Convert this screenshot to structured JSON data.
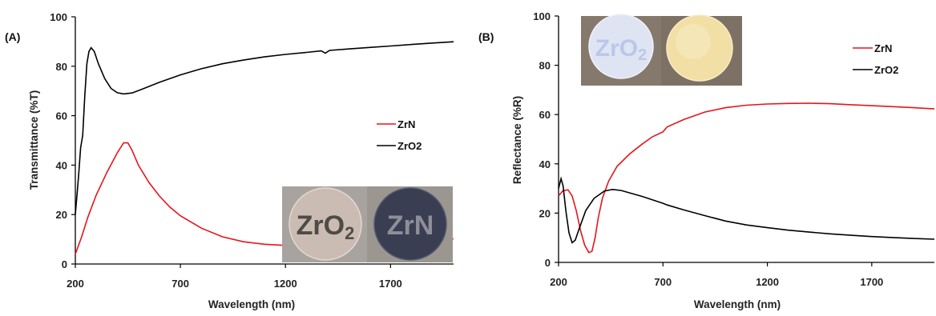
{
  "chart_data": [
    {
      "type": "line",
      "panel_label": "(A)",
      "xlabel": "Wavelength (nm)",
      "ylabel": "Transmittance (%T)",
      "xlim": [
        200,
        2000
      ],
      "ylim": [
        0,
        100
      ],
      "x_ticks": [
        200,
        700,
        1200,
        1700
      ],
      "y_ticks": [
        0,
        20,
        40,
        60,
        80,
        100
      ],
      "grid": false,
      "legend_position": "right",
      "photo_labels": [
        "ZrO2",
        "ZrN"
      ],
      "series": [
        {
          "name": "ZrN",
          "color": "#e8141c",
          "points": [
            [
              200,
              4
            ],
            [
              230,
              11
            ],
            [
              260,
              19
            ],
            [
              300,
              28
            ],
            [
              350,
              37
            ],
            [
              400,
              45
            ],
            [
              430,
              49
            ],
            [
              450,
              49
            ],
            [
              470,
              46
            ],
            [
              500,
              40
            ],
            [
              550,
              33
            ],
            [
              600,
              27.5
            ],
            [
              650,
              23
            ],
            [
              700,
              19.5
            ],
            [
              800,
              14.5
            ],
            [
              900,
              11
            ],
            [
              1000,
              9
            ],
            [
              1100,
              8
            ],
            [
              1200,
              7.5
            ],
            [
              1300,
              7.2
            ],
            [
              1400,
              7.2
            ],
            [
              1500,
              7.5
            ],
            [
              1600,
              8
            ],
            [
              1700,
              8.5
            ],
            [
              1800,
              9
            ],
            [
              1900,
              9.6
            ],
            [
              2000,
              10.2
            ]
          ]
        },
        {
          "name": "ZrO2",
          "color": "#000000",
          "points": [
            [
              200,
              20
            ],
            [
              215,
              35
            ],
            [
              225,
              47
            ],
            [
              235,
              52
            ],
            [
              245,
              68
            ],
            [
              255,
              81
            ],
            [
              265,
              86
            ],
            [
              275,
              87.5
            ],
            [
              290,
              86
            ],
            [
              310,
              81
            ],
            [
              340,
              75
            ],
            [
              370,
              71
            ],
            [
              400,
              69.3
            ],
            [
              430,
              68.8
            ],
            [
              470,
              69.2
            ],
            [
              520,
              70.8
            ],
            [
              600,
              73.5
            ],
            [
              700,
              76.5
            ],
            [
              800,
              79
            ],
            [
              900,
              81
            ],
            [
              1000,
              82.5
            ],
            [
              1100,
              83.8
            ],
            [
              1200,
              84.8
            ],
            [
              1300,
              85.6
            ],
            [
              1370,
              86.2
            ],
            [
              1390,
              85.3
            ],
            [
              1410,
              86.4
            ],
            [
              1500,
              87
            ],
            [
              1600,
              87.6
            ],
            [
              1700,
              88.2
            ],
            [
              1800,
              88.8
            ],
            [
              1900,
              89.4
            ],
            [
              2000,
              89.9
            ]
          ]
        }
      ]
    },
    {
      "type": "line",
      "panel_label": "(B)",
      "xlabel": "Wavelength (nm)",
      "ylabel": "Reflectance (%R)",
      "xlim": [
        200,
        2000
      ],
      "ylim": [
        0,
        100
      ],
      "x_ticks": [
        200,
        700,
        1200,
        1700
      ],
      "y_ticks": [
        0,
        20,
        40,
        60,
        80,
        100
      ],
      "grid": false,
      "legend_position": "top-right",
      "series": [
        {
          "name": "ZrN",
          "color": "#e8141c",
          "points": [
            [
              200,
              27
            ],
            [
              220,
              29
            ],
            [
              245,
              29.5
            ],
            [
              265,
              27
            ],
            [
              285,
              21
            ],
            [
              305,
              13
            ],
            [
              325,
              7
            ],
            [
              345,
              4
            ],
            [
              360,
              4.5
            ],
            [
              375,
              10
            ],
            [
              390,
              18
            ],
            [
              410,
              26
            ],
            [
              440,
              33
            ],
            [
              480,
              39
            ],
            [
              540,
              44
            ],
            [
              600,
              48
            ],
            [
              650,
              51
            ],
            [
              700,
              53
            ],
            [
              720,
              55
            ],
            [
              800,
              58
            ],
            [
              900,
              61
            ],
            [
              1000,
              62.8
            ],
            [
              1100,
              63.8
            ],
            [
              1200,
              64.3
            ],
            [
              1300,
              64.5
            ],
            [
              1400,
              64.6
            ],
            [
              1500,
              64.4
            ],
            [
              1600,
              64
            ],
            [
              1700,
              63.6
            ],
            [
              1800,
              63.2
            ],
            [
              1900,
              62.8
            ],
            [
              2000,
              62.3
            ]
          ]
        },
        {
          "name": "ZrO2",
          "color": "#000000",
          "points": [
            [
              200,
              30
            ],
            [
              212,
              34
            ],
            [
              222,
              31
            ],
            [
              235,
              21
            ],
            [
              250,
              12
            ],
            [
              265,
              8
            ],
            [
              280,
              9
            ],
            [
              300,
              14
            ],
            [
              330,
              21
            ],
            [
              370,
              26
            ],
            [
              420,
              29
            ],
            [
              460,
              29.6
            ],
            [
              500,
              29.2
            ],
            [
              600,
              26.8
            ],
            [
              700,
              24
            ],
            [
              720,
              23.3
            ],
            [
              800,
              21.3
            ],
            [
              900,
              19
            ],
            [
              1000,
              16.8
            ],
            [
              1100,
              15.2
            ],
            [
              1200,
              14.1
            ],
            [
              1300,
              13.1
            ],
            [
              1400,
              12.3
            ],
            [
              1500,
              11.6
            ],
            [
              1600,
              11
            ],
            [
              1700,
              10.5
            ],
            [
              1800,
              10.1
            ],
            [
              1900,
              9.7
            ],
            [
              2000,
              9.4
            ]
          ]
        }
      ]
    }
  ]
}
